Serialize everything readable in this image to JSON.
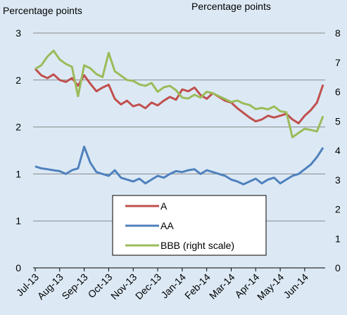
{
  "chart_data": {
    "type": "line",
    "y_label": "Percentage points",
    "y2_label": "Percentage points",
    "categories": [
      "Jul-13",
      null,
      null,
      null,
      "Aug-13",
      null,
      null,
      null,
      "Sep-13",
      null,
      null,
      null,
      "Oct-13",
      null,
      null,
      null,
      "Nov-13",
      null,
      null,
      null,
      "Dec-13",
      null,
      null,
      null,
      "Jan-14",
      null,
      null,
      null,
      "Feb-14",
      null,
      null,
      null,
      "Mar-14",
      null,
      null,
      null,
      "Apr-14",
      null,
      null,
      null,
      "May-14",
      null,
      null,
      null,
      "Jun-14",
      null,
      null,
      null
    ],
    "series": [
      {
        "name": "A",
        "color": "#c0504d",
        "values": [
          2.12,
          2.05,
          2.02,
          2.06,
          2.0,
          1.98,
          2.02,
          1.94,
          2.05,
          1.96,
          1.88,
          1.92,
          1.95,
          1.8,
          1.74,
          1.78,
          1.72,
          1.74,
          1.7,
          1.76,
          1.73,
          1.78,
          1.82,
          1.79,
          1.9,
          1.88,
          1.92,
          1.84,
          1.8,
          1.86,
          1.82,
          1.78,
          1.76,
          1.7,
          1.65,
          1.6,
          1.56,
          1.58,
          1.62,
          1.6,
          1.62,
          1.64,
          1.58,
          1.54,
          1.62,
          1.68,
          1.76,
          1.95
        ]
      },
      {
        "name": "AA",
        "color": "#4f81bd",
        "values": [
          1.08,
          1.06,
          1.05,
          1.04,
          1.03,
          1.0,
          1.04,
          1.06,
          1.29,
          1.12,
          1.02,
          1.0,
          0.98,
          1.04,
          0.96,
          0.94,
          0.92,
          0.95,
          0.9,
          0.94,
          0.98,
          0.96,
          1.0,
          1.03,
          1.02,
          1.04,
          1.05,
          1.0,
          1.04,
          1.02,
          1.0,
          0.98,
          0.94,
          0.92,
          0.89,
          0.92,
          0.95,
          0.9,
          0.94,
          0.96,
          0.9,
          0.94,
          0.98,
          1.0,
          1.05,
          1.1,
          1.18,
          1.28
        ]
      },
      {
        "name": "BBB (right scale)",
        "color": "#9bbb59",
        "axis": "y2",
        "values": [
          6.78,
          6.9,
          7.2,
          7.4,
          7.1,
          6.95,
          6.85,
          5.85,
          6.9,
          6.8,
          6.6,
          6.5,
          7.33,
          6.7,
          6.55,
          6.4,
          6.37,
          6.25,
          6.2,
          6.3,
          6.0,
          6.15,
          6.2,
          6.05,
          5.8,
          5.77,
          5.9,
          5.8,
          6.0,
          5.95,
          5.85,
          5.75,
          5.65,
          5.7,
          5.6,
          5.55,
          5.41,
          5.45,
          5.4,
          5.5,
          5.34,
          5.3,
          4.45,
          4.6,
          4.74,
          4.7,
          4.65,
          5.17
        ]
      }
    ],
    "ylim": [
      0,
      2.5
    ],
    "yticks": [
      0,
      {
        "value": 0.5,
        "label": "1"
      },
      1,
      {
        "value": 1.5,
        "label": "2"
      },
      2,
      {
        "value": 2.5,
        "label": "3"
      }
    ],
    "y2lim": [
      0,
      8
    ],
    "y2ticks": [
      0,
      1,
      2,
      3,
      4,
      5,
      6,
      7,
      8
    ],
    "grid": true
  }
}
